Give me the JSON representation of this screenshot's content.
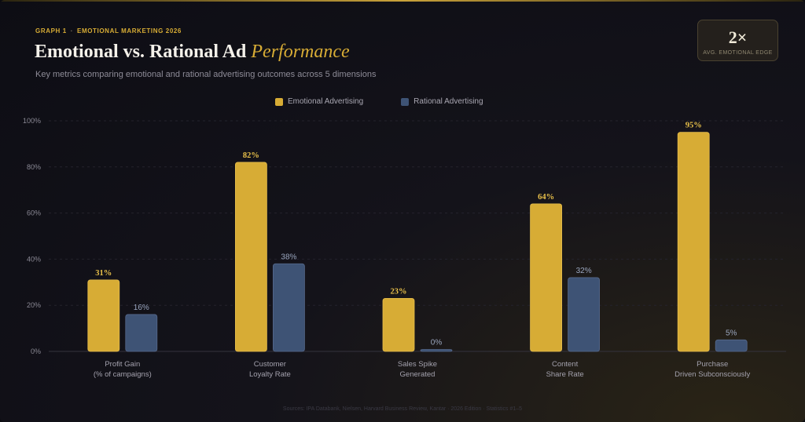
{
  "header": {
    "graph_label": "GRAPH 1",
    "topic": "EMOTIONAL MARKETING 2026",
    "title_main": "Emotional vs. Rational Ad",
    "title_accent": "Performance",
    "subtitle": "Key metrics comparing emotional and rational advertising outcomes across 5 dimensions"
  },
  "badge": {
    "value": "2×",
    "label": "AVG. EMOTIONAL EDGE"
  },
  "colors": {
    "emotional": "#d7ac35",
    "rational": "#3e5375",
    "emotional_label": "#e8c04a",
    "rational_label": "#9aa6bf"
  },
  "chart_data": {
    "type": "bar",
    "categories": [
      [
        "Profit Gain",
        "(% of campaigns)"
      ],
      [
        "Customer",
        "Loyalty Rate"
      ],
      [
        "Sales Spike",
        "Generated"
      ],
      [
        "Content",
        "Share Rate"
      ],
      [
        "Purchase",
        "Driven Subconsciously"
      ]
    ],
    "series": [
      {
        "name": "Emotional Advertising",
        "values": [
          31,
          82,
          23,
          64,
          95
        ]
      },
      {
        "name": "Rational Advertising",
        "values": [
          16,
          38,
          0,
          32,
          5
        ]
      }
    ],
    "value_suffix": "%",
    "ylim": [
      0,
      100
    ],
    "yticks": [
      "0%",
      "20%",
      "40%",
      "60%",
      "80%",
      "100%"
    ],
    "grid": true,
    "legend": "top-center"
  },
  "footer": "Sources: IPA Databank, Nielsen, Harvard Business Review, Kantar  ·  2026 Edition  ·  Statistics #1–5"
}
